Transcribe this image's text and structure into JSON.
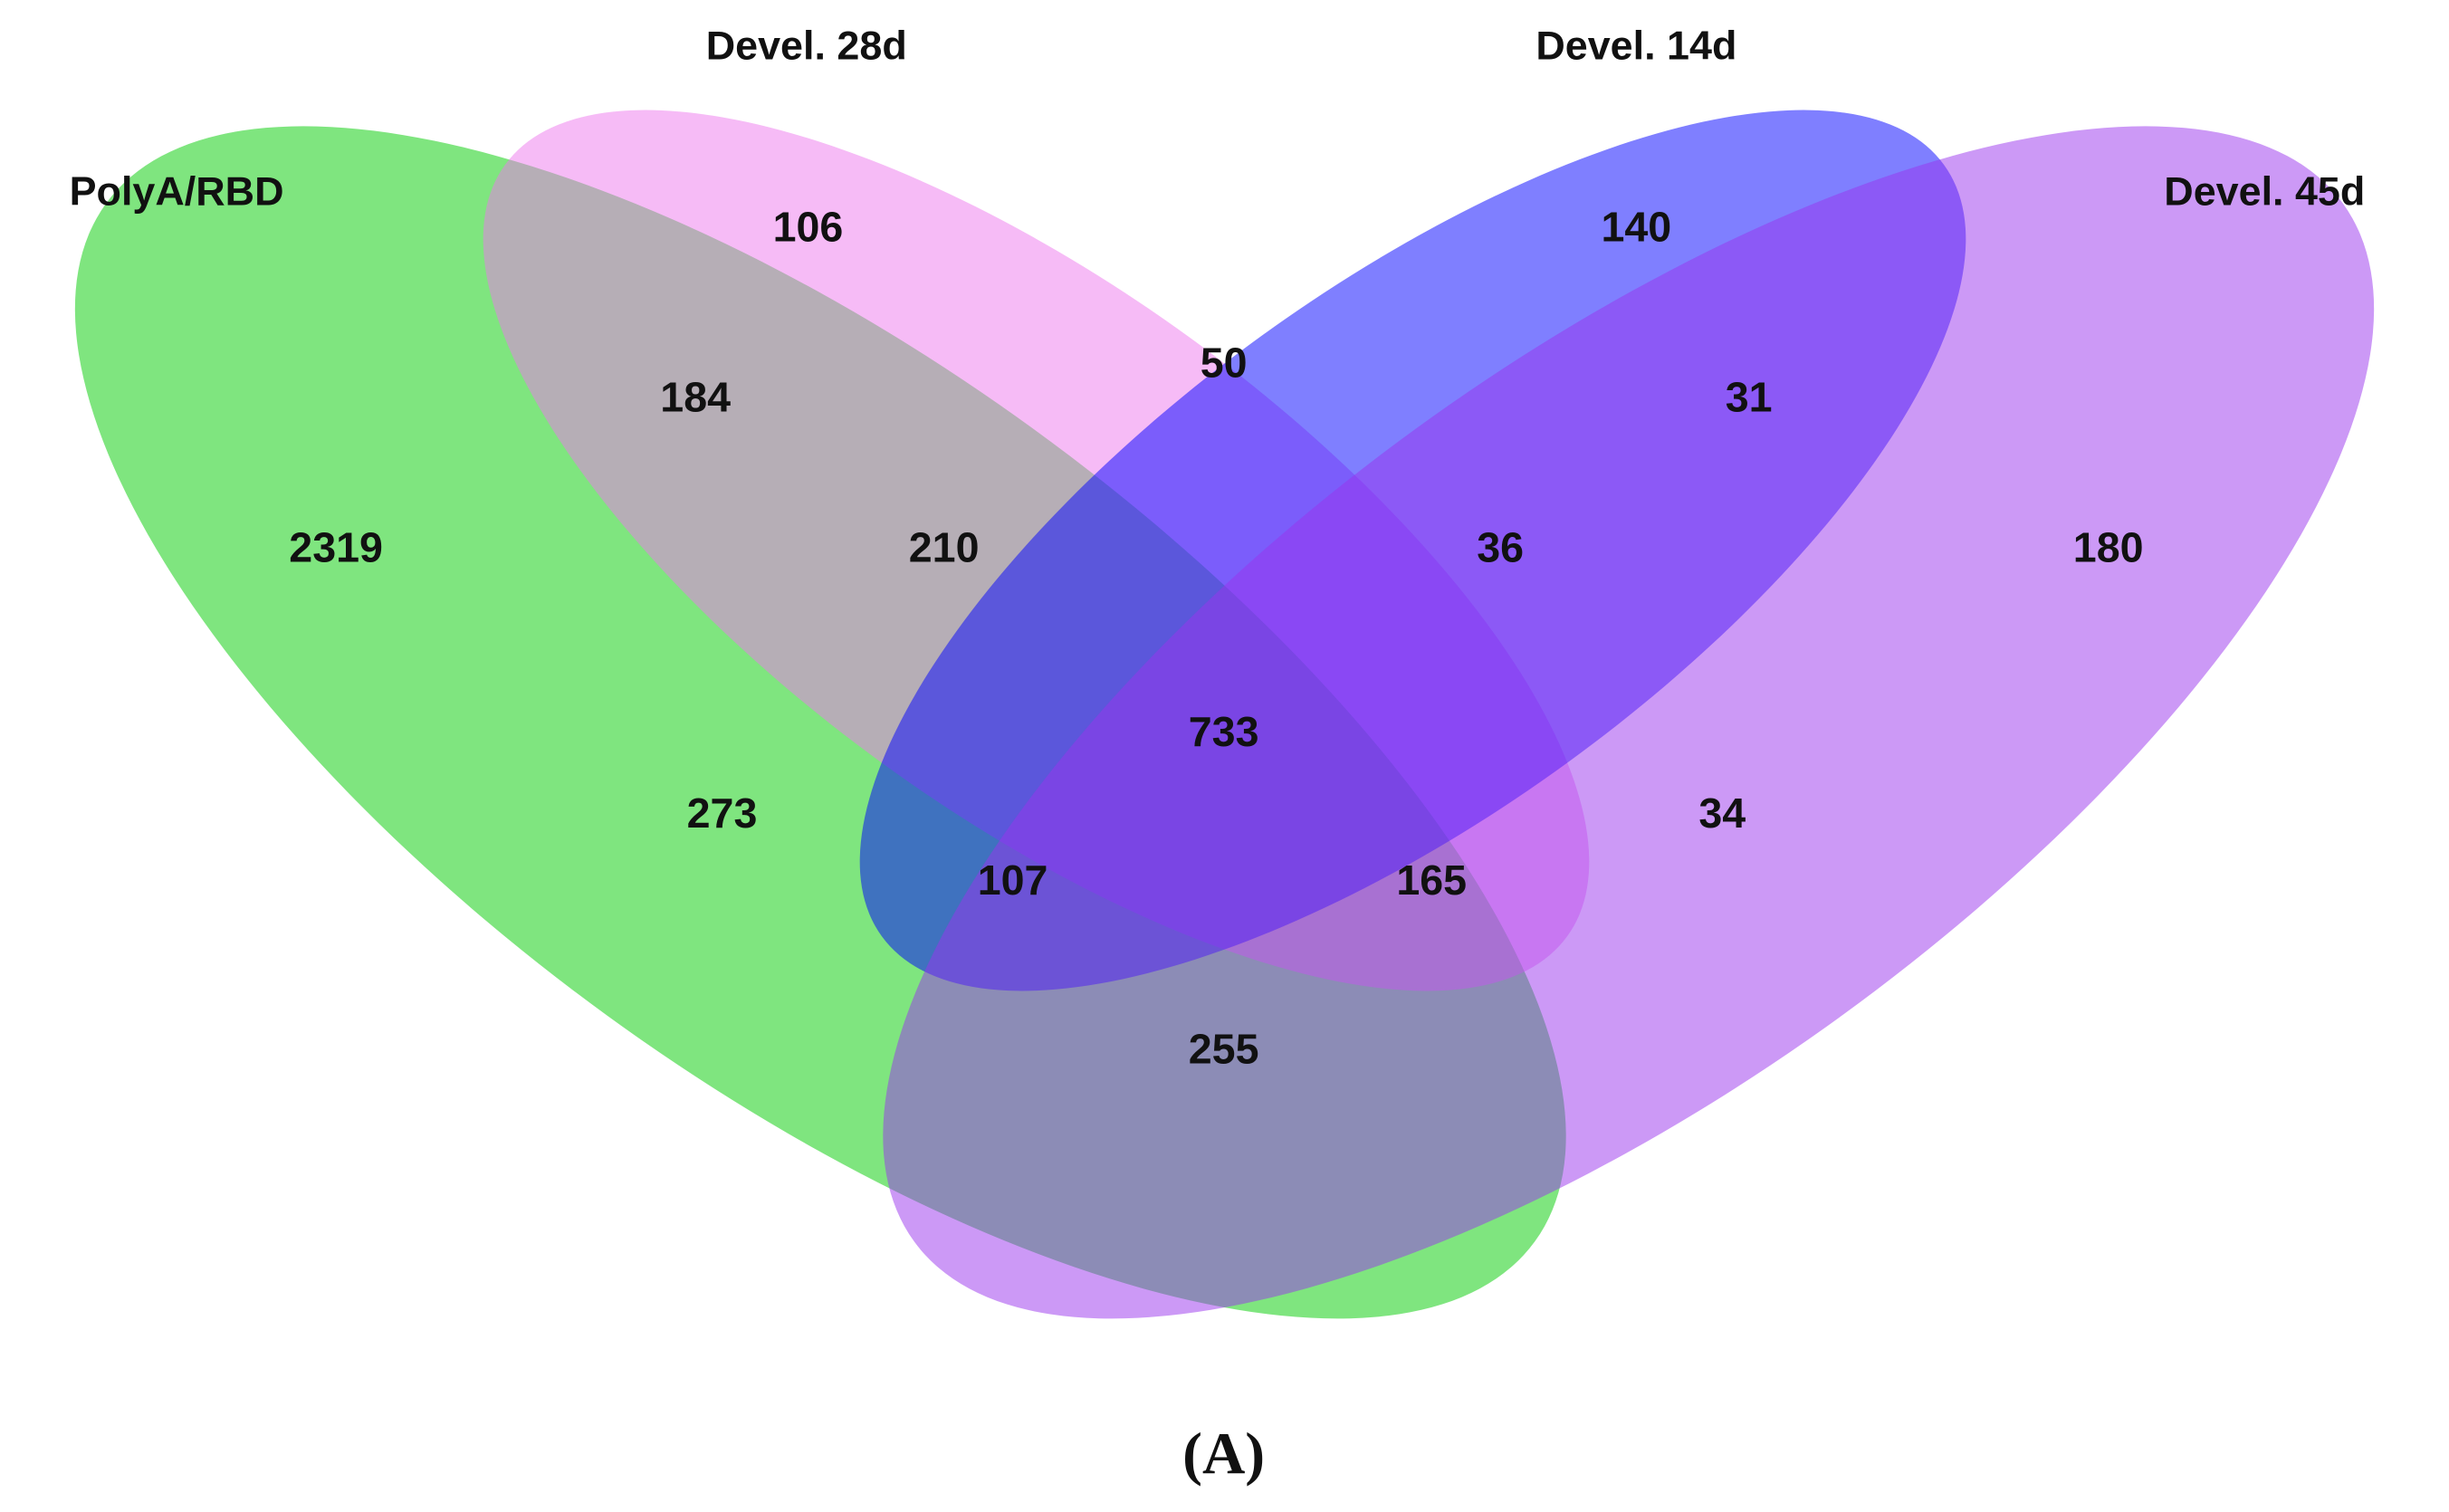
{
  "sets": [
    {
      "label": "PolyA/RBD",
      "color": "#00cc00"
    },
    {
      "label": "Devel. 28d",
      "color": "#ee77ee"
    },
    {
      "label": "Devel. 14d",
      "color": "#0000ff"
    },
    {
      "label": "Devel. 45d",
      "color": "#9933ee"
    }
  ],
  "regions": [
    {
      "label": "2319"
    },
    {
      "label": "106"
    },
    {
      "label": "140"
    },
    {
      "label": "180"
    },
    {
      "label": "184"
    },
    {
      "label": "50"
    },
    {
      "label": "31"
    },
    {
      "label": "210"
    },
    {
      "label": "36"
    },
    {
      "label": "733"
    },
    {
      "label": "273"
    },
    {
      "label": "34"
    },
    {
      "label": "107"
    },
    {
      "label": "165"
    },
    {
      "label": "255"
    }
  ],
  "caption": "(A)"
}
